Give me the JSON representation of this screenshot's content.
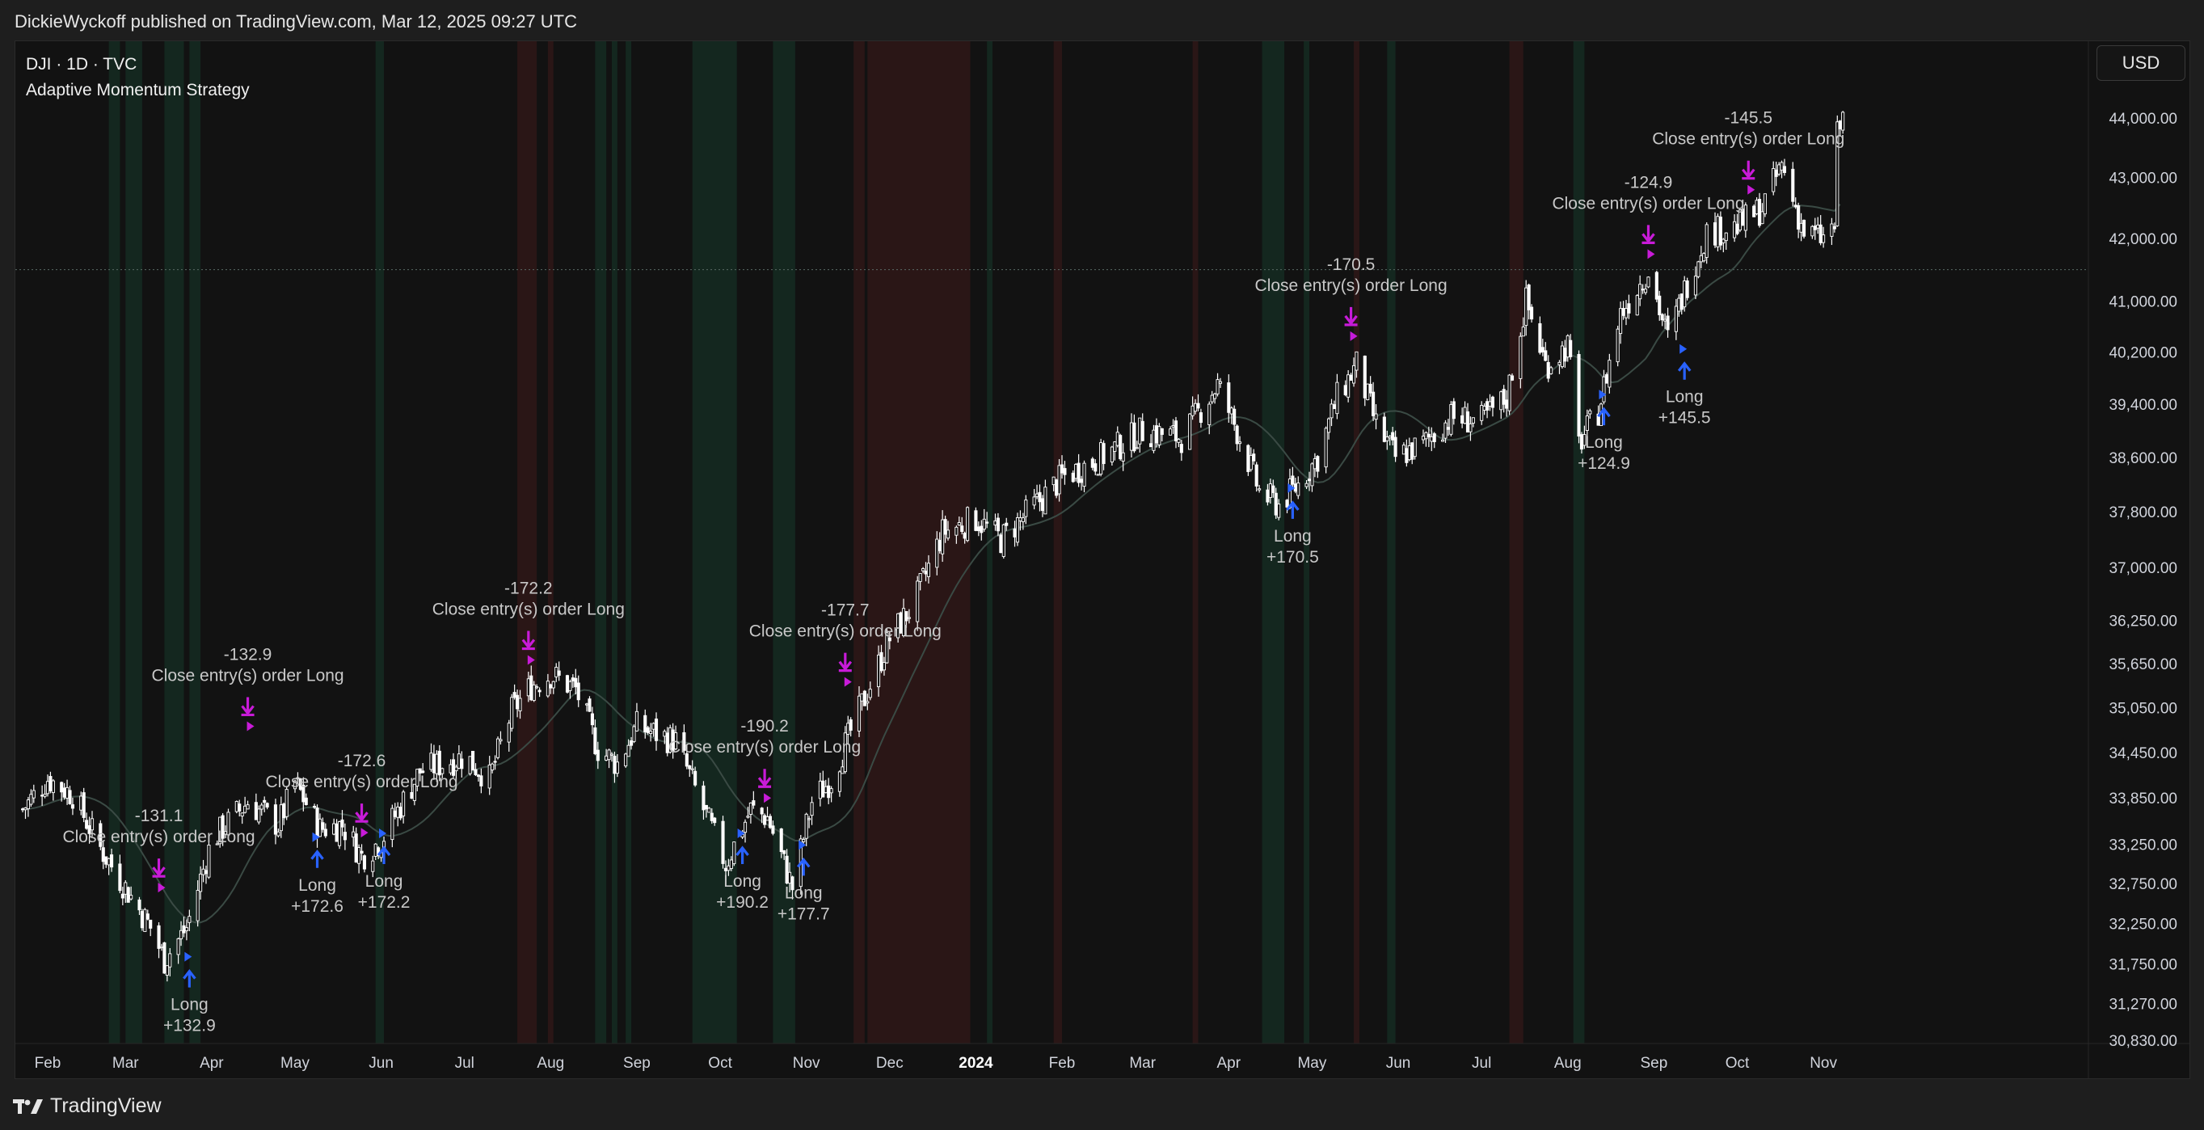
{
  "header": {
    "published": "DickieWyckoff published on TradingView.com, Mar 12, 2025 09:27 UTC"
  },
  "legend": {
    "symbol": "DJI · 1D · TVC",
    "strategy": "Adaptive Momentum Strategy"
  },
  "currency_button": "USD",
  "footer": {
    "brand": "TradingView"
  },
  "colors": {
    "background": "#121212",
    "candle": "#ffffff",
    "green_zone": "#14271f",
    "red_zone": "#2a1616",
    "close_marker": "#c81bd8",
    "long_marker": "#2962ff",
    "label_text": "#c8c8c8",
    "moving_average": "#3a4a44"
  },
  "chart_data": {
    "type": "candlestick",
    "symbol": "DJI",
    "interval": "1D",
    "y_axis": {
      "ticks": [
        "44,000.00",
        "43,000.00",
        "42,000.00",
        "41,000.00",
        "40,200.00",
        "39,400.00",
        "38,600.00",
        "37,800.00",
        "37,000.00",
        "36,250.00",
        "35,650.00",
        "35,050.00",
        "34,450.00",
        "33,850.00",
        "33,250.00",
        "32,750.00",
        "32,250.00",
        "31,750.00",
        "31,270.00",
        "30,830.00"
      ],
      "tick_values": [
        44000,
        43000,
        42000,
        41000,
        40200,
        39400,
        38600,
        37800,
        37000,
        36250,
        35650,
        35050,
        34450,
        33850,
        33250,
        32750,
        32250,
        31750,
        31270,
        30830
      ],
      "scale": "log"
    },
    "x_axis": {
      "ticks": [
        "Feb",
        "Mar",
        "Apr",
        "May",
        "Jun",
        "Jul",
        "Aug",
        "Sep",
        "Oct",
        "Nov",
        "Dec",
        "2024",
        "Feb",
        "Mar",
        "Apr",
        "May",
        "Jun",
        "Jul",
        "Aug",
        "Sep",
        "Oct",
        "Nov"
      ],
      "tick_dates": [
        "2023-02-01",
        "2023-03-01",
        "2023-04-01",
        "2023-05-01",
        "2023-06-01",
        "2023-07-01",
        "2023-08-01",
        "2023-09-01",
        "2023-10-01",
        "2023-11-01",
        "2023-12-01",
        "2024-01-01",
        "2024-02-01",
        "2024-03-01",
        "2024-04-01",
        "2024-05-01",
        "2024-06-01",
        "2024-07-01",
        "2024-08-01",
        "2024-09-01",
        "2024-10-01",
        "2024-11-01"
      ],
      "bold": [
        "2024"
      ]
    },
    "last_price_line": 41500,
    "price_path": [
      [
        "2023-01-23",
        33700
      ],
      [
        "2023-02-01",
        34100
      ],
      [
        "2023-02-10",
        33900
      ],
      [
        "2023-02-20",
        33200
      ],
      [
        "2023-03-01",
        32700
      ],
      [
        "2023-03-10",
        32200
      ],
      [
        "2023-03-15",
        31800
      ],
      [
        "2023-03-23",
        32200
      ],
      [
        "2023-04-01",
        33300
      ],
      [
        "2023-04-14",
        33800
      ],
      [
        "2023-04-25",
        33500
      ],
      [
        "2023-05-01",
        34050
      ],
      [
        "2023-05-10",
        33450
      ],
      [
        "2023-05-18",
        33500
      ],
      [
        "2023-05-25",
        33100
      ],
      [
        "2023-06-01",
        33300
      ],
      [
        "2023-06-15",
        34200
      ],
      [
        "2023-07-01",
        34400
      ],
      [
        "2023-07-10",
        34100
      ],
      [
        "2023-07-18",
        35000
      ],
      [
        "2023-07-25",
        35350
      ],
      [
        "2023-08-01",
        35500
      ],
      [
        "2023-08-10",
        35300
      ],
      [
        "2023-08-18",
        34500
      ],
      [
        "2023-08-25",
        34300
      ],
      [
        "2023-09-01",
        34800
      ],
      [
        "2023-09-15",
        34600
      ],
      [
        "2023-09-25",
        33700
      ],
      [
        "2023-10-03",
        33000
      ],
      [
        "2023-10-12",
        33700
      ],
      [
        "2023-10-18",
        33600
      ],
      [
        "2023-10-27",
        32700
      ],
      [
        "2023-11-03",
        33800
      ],
      [
        "2023-11-10",
        34100
      ],
      [
        "2023-11-20",
        35000
      ],
      [
        "2023-12-01",
        36000
      ],
      [
        "2023-12-10",
        36500
      ],
      [
        "2023-12-20",
        37500
      ],
      [
        "2024-01-01",
        37700
      ],
      [
        "2024-01-10",
        37400
      ],
      [
        "2024-01-20",
        37800
      ],
      [
        "2024-02-01",
        38300
      ],
      [
        "2024-02-15",
        38600
      ],
      [
        "2024-03-01",
        39000
      ],
      [
        "2024-03-15",
        38900
      ],
      [
        "2024-03-28",
        39700
      ],
      [
        "2024-04-05",
        38900
      ],
      [
        "2024-04-12",
        38100
      ],
      [
        "2024-04-19",
        37900
      ],
      [
        "2024-04-26",
        38200
      ],
      [
        "2024-05-03",
        38600
      ],
      [
        "2024-05-10",
        39500
      ],
      [
        "2024-05-17",
        40000
      ],
      [
        "2024-05-24",
        39100
      ],
      [
        "2024-05-31",
        38600
      ],
      [
        "2024-06-10",
        38800
      ],
      [
        "2024-06-20",
        39200
      ],
      [
        "2024-07-01",
        39150
      ],
      [
        "2024-07-10",
        39500
      ],
      [
        "2024-07-17",
        41000
      ],
      [
        "2024-07-24",
        40000
      ],
      [
        "2024-08-01",
        40300
      ],
      [
        "2024-08-05",
        38800
      ],
      [
        "2024-08-12",
        39300
      ],
      [
        "2024-08-20",
        40800
      ],
      [
        "2024-08-30",
        41500
      ],
      [
        "2024-09-06",
        40400
      ],
      [
        "2024-09-13",
        41300
      ],
      [
        "2024-09-20",
        42100
      ],
      [
        "2024-10-01",
        42200
      ],
      [
        "2024-10-10",
        42500
      ],
      [
        "2024-10-17",
        43200
      ],
      [
        "2024-10-25",
        42100
      ],
      [
        "2024-11-01",
        42000
      ],
      [
        "2024-11-05",
        42200
      ],
      [
        "2024-11-06",
        43700
      ],
      [
        "2024-11-08",
        44000
      ]
    ],
    "background_zones": [
      {
        "color": "green",
        "start": "2023-02-23",
        "end": "2023-02-27"
      },
      {
        "color": "green",
        "start": "2023-03-01",
        "end": "2023-03-07"
      },
      {
        "color": "green",
        "start": "2023-03-15",
        "end": "2023-03-22"
      },
      {
        "color": "green",
        "start": "2023-03-24",
        "end": "2023-03-28"
      },
      {
        "color": "green",
        "start": "2023-05-30",
        "end": "2023-06-02"
      },
      {
        "color": "red",
        "start": "2023-07-20",
        "end": "2023-07-27"
      },
      {
        "color": "red",
        "start": "2023-07-31",
        "end": "2023-08-02"
      },
      {
        "color": "green",
        "start": "2023-08-17",
        "end": "2023-08-21"
      },
      {
        "color": "green",
        "start": "2023-08-23",
        "end": "2023-08-25"
      },
      {
        "color": "green",
        "start": "2023-08-28",
        "end": "2023-08-30"
      },
      {
        "color": "green",
        "start": "2023-09-21",
        "end": "2023-10-07"
      },
      {
        "color": "green",
        "start": "2023-10-20",
        "end": "2023-10-28"
      },
      {
        "color": "red",
        "start": "2023-11-18",
        "end": "2023-11-22"
      },
      {
        "color": "red",
        "start": "2023-11-23",
        "end": "2023-12-30"
      },
      {
        "color": "green",
        "start": "2024-01-05",
        "end": "2024-01-07"
      },
      {
        "color": "red",
        "start": "2024-01-29",
        "end": "2024-02-01"
      },
      {
        "color": "red",
        "start": "2024-03-19",
        "end": "2024-03-21"
      },
      {
        "color": "green",
        "start": "2024-04-13",
        "end": "2024-04-21"
      },
      {
        "color": "green",
        "start": "2024-04-28",
        "end": "2024-04-30"
      },
      {
        "color": "red",
        "start": "2024-05-16",
        "end": "2024-05-18"
      },
      {
        "color": "green",
        "start": "2024-05-28",
        "end": "2024-05-31"
      },
      {
        "color": "red",
        "start": "2024-07-11",
        "end": "2024-07-16"
      },
      {
        "color": "green",
        "start": "2024-08-03",
        "end": "2024-08-07"
      }
    ],
    "trades": [
      {
        "exit_date": "2023-03-13",
        "exit_price": 32700,
        "entry_date": "2023-03-24",
        "entry_price": 31800,
        "pnl": "-131.1",
        "entry_label": "Long",
        "entry_pnl": "+132.9",
        "close_label": "Close entry(s) order Long"
      },
      {
        "exit_date": "2023-04-14",
        "exit_price": 34800,
        "pnl": "-132.9",
        "close_label": "Close entry(s) order Long"
      },
      {
        "exit_date": "2023-05-25",
        "exit_price": 33400,
        "entry_date": "2023-05-09",
        "entry_price": 33300,
        "pnl": "-172.6",
        "entry_label": "Long",
        "entry_pnl": "+172.6",
        "close_label": "Close entry(s) order Long"
      },
      {
        "entry_date": "2023-06-02",
        "entry_price": 33350,
        "entry_label": "Long",
        "entry_pnl": "+172.2"
      },
      {
        "exit_date": "2023-07-24",
        "exit_price": 35700,
        "pnl": "-172.2",
        "close_label": "Close entry(s) order Long"
      },
      {
        "exit_date": "2023-10-17",
        "exit_price": 33850,
        "entry_date": "2023-10-09",
        "entry_price": 33350,
        "pnl": "-190.2",
        "entry_label": "Long",
        "entry_pnl": "+190.2",
        "close_label": "Close entry(s) order Long"
      },
      {
        "exit_date": "2023-11-15",
        "exit_price": 35400,
        "entry_date": "2023-10-31",
        "entry_price": 33200,
        "pnl": "-177.7",
        "entry_label": "Long",
        "entry_pnl": "+177.7",
        "close_label": "Close entry(s) order Long"
      },
      {
        "exit_date": "2024-05-15",
        "exit_price": 40450,
        "entry_date": "2024-04-24",
        "entry_price": 38100,
        "pnl": "-170.5",
        "entry_label": "Long",
        "entry_pnl": "+170.5",
        "close_label": "Close entry(s) order Long"
      },
      {
        "exit_date": "2024-08-30",
        "exit_price": 41750,
        "entry_date": "2024-08-14",
        "entry_price": 39500,
        "pnl": "-124.9",
        "entry_label": "Long",
        "entry_pnl": "+124.9",
        "close_label": "Close entry(s) order Long"
      },
      {
        "exit_date": "2024-10-05",
        "exit_price": 42800,
        "entry_date": "2024-09-12",
        "entry_price": 40200,
        "pnl": "-145.5",
        "entry_label": "Long",
        "entry_pnl": "+145.5",
        "close_label": "Close entry(s) order Long"
      }
    ]
  }
}
